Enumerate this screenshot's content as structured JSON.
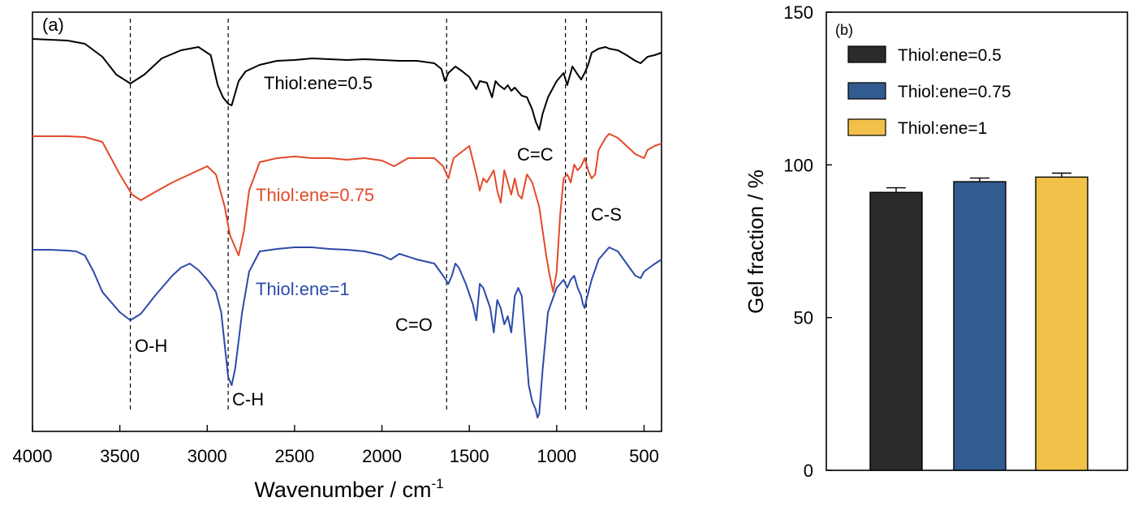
{
  "chart_data": [
    {
      "type": "line",
      "panel_label": "(a)",
      "xlabel": "Wavenumber / cm",
      "xlabel_sup": "-1",
      "xlim": [
        4000,
        400
      ],
      "x_ticks": [
        4000,
        3500,
        3000,
        2500,
        2000,
        1500,
        1000,
        500
      ],
      "y_ticks_shown": false,
      "series": [
        {
          "name": "Thiol:ene=0.5",
          "color": "#000000",
          "x": [
            4000,
            3900,
            3800,
            3700,
            3600,
            3520,
            3440,
            3360,
            3260,
            3150,
            3050,
            2980,
            2940,
            2910,
            2880,
            2860,
            2820,
            2780,
            2700,
            2600,
            2500,
            2400,
            2300,
            2200,
            2100,
            2000,
            1900,
            1800,
            1700,
            1660,
            1640,
            1620,
            1580,
            1540,
            1500,
            1460,
            1440,
            1400,
            1370,
            1350,
            1330,
            1300,
            1280,
            1260,
            1240,
            1200,
            1170,
            1140,
            1120,
            1100,
            1080,
            1050,
            1020,
            1000,
            980,
            960,
            940,
            910,
            880,
            860,
            840,
            820,
            800,
            760,
            720,
            700,
            650,
            600,
            550,
            520,
            480,
            440,
            400
          ],
          "y": [
            8,
            9,
            10,
            14,
            30,
            52,
            63,
            52,
            32,
            22,
            18,
            28,
            65,
            80,
            88,
            90,
            60,
            48,
            40,
            35,
            34,
            32,
            33,
            34,
            33,
            34,
            35,
            35,
            38,
            45,
            60,
            50,
            42,
            48,
            55,
            70,
            60,
            62,
            80,
            60,
            65,
            70,
            65,
            72,
            68,
            78,
            80,
            95,
            110,
            120,
            100,
            80,
            68,
            60,
            55,
            50,
            65,
            42,
            52,
            58,
            50,
            40,
            25,
            20,
            18,
            20,
            22,
            28,
            35,
            38,
            30,
            28,
            25
          ]
        },
        {
          "name": "Thiol:ene=0.75",
          "color": "#e34a2a",
          "x": [
            4000,
            3900,
            3800,
            3700,
            3600,
            3500,
            3430,
            3380,
            3300,
            3200,
            3100,
            3000,
            2950,
            2900,
            2870,
            2840,
            2820,
            2790,
            2760,
            2700,
            2600,
            2500,
            2400,
            2300,
            2200,
            2100,
            2000,
            1930,
            1850,
            1700,
            1650,
            1620,
            1590,
            1560,
            1500,
            1460,
            1440,
            1420,
            1400,
            1360,
            1340,
            1320,
            1300,
            1280,
            1260,
            1240,
            1220,
            1200,
            1170,
            1140,
            1120,
            1100,
            1080,
            1060,
            1040,
            1020,
            1000,
            980,
            960,
            940,
            920,
            900,
            880,
            860,
            840,
            820,
            800,
            780,
            760,
            720,
            700,
            650,
            600,
            550,
            500,
            480,
            440,
            400
          ],
          "y": [
            3,
            3,
            3,
            4,
            10,
            50,
            75,
            82,
            72,
            60,
            50,
            40,
            50,
            90,
            125,
            140,
            150,
            120,
            70,
            35,
            30,
            28,
            30,
            30,
            32,
            30,
            33,
            40,
            30,
            30,
            40,
            55,
            30,
            25,
            15,
            50,
            70,
            55,
            60,
            45,
            70,
            85,
            45,
            60,
            75,
            55,
            75,
            80,
            50,
            60,
            75,
            90,
            120,
            150,
            175,
            195,
            170,
            100,
            55,
            50,
            60,
            38,
            45,
            40,
            30,
            45,
            55,
            50,
            20,
            5,
            0,
            5,
            15,
            25,
            30,
            20,
            15,
            12
          ]
        },
        {
          "name": "Thiol:ene=1",
          "color": "#2b4ba8",
          "x": [
            4000,
            3900,
            3800,
            3750,
            3700,
            3650,
            3600,
            3500,
            3440,
            3380,
            3300,
            3200,
            3150,
            3100,
            3050,
            3000,
            2950,
            2920,
            2900,
            2880,
            2860,
            2840,
            2800,
            2760,
            2700,
            2600,
            2500,
            2400,
            2300,
            2200,
            2100,
            2000,
            1950,
            1900,
            1800,
            1700,
            1650,
            1620,
            1600,
            1580,
            1560,
            1520,
            1480,
            1460,
            1440,
            1420,
            1380,
            1360,
            1340,
            1320,
            1300,
            1280,
            1260,
            1240,
            1220,
            1200,
            1180,
            1160,
            1140,
            1120,
            1110,
            1100,
            1080,
            1050,
            1000,
            960,
            940,
            920,
            900,
            880,
            860,
            850,
            840,
            830,
            800,
            760,
            720,
            700,
            650,
            600,
            550,
            520,
            500,
            450,
            400
          ],
          "y": [
            3,
            3,
            4,
            5,
            10,
            30,
            55,
            80,
            90,
            82,
            60,
            35,
            25,
            20,
            28,
            40,
            55,
            80,
            120,
            160,
            170,
            150,
            80,
            30,
            5,
            2,
            0,
            0,
            2,
            3,
            5,
            10,
            15,
            8,
            15,
            20,
            35,
            45,
            35,
            20,
            25,
            45,
            70,
            90,
            45,
            50,
            75,
            105,
            65,
            75,
            95,
            85,
            105,
            60,
            50,
            60,
            115,
            170,
            190,
            200,
            210,
            205,
            150,
            80,
            50,
            40,
            50,
            40,
            35,
            50,
            60,
            70,
            75,
            65,
            40,
            15,
            5,
            0,
            5,
            20,
            35,
            38,
            30,
            22,
            15
          ]
        }
      ],
      "annotations": [
        {
          "text": "Thiol:ene=0.5",
          "color": "#000000"
        },
        {
          "text": "Thiol:ene=0.75",
          "color": "#e34a2a"
        },
        {
          "text": "Thiol:ene=1",
          "color": "#2b4ba8"
        },
        {
          "text": "O-H",
          "color": "#000000"
        },
        {
          "text": "C-H",
          "color": "#000000"
        },
        {
          "text": "C=O",
          "color": "#000000"
        },
        {
          "text": "C=C",
          "color": "#000000"
        },
        {
          "text": "C-S",
          "color": "#000000"
        }
      ],
      "reference_lines": [
        3440,
        2880,
        1630,
        950,
        830
      ]
    },
    {
      "type": "bar",
      "panel_label": "(b)",
      "ylabel": "Gel fraction / %",
      "xlabel": "",
      "ylim": [
        0,
        150
      ],
      "y_ticks": [
        0,
        50,
        100,
        150
      ],
      "categories": [
        "Thiol:ene=0.5",
        "Thiol:ene=0.75",
        "Thiol:ene=1"
      ],
      "values": [
        91,
        94.5,
        96
      ],
      "errors": [
        1.5,
        1.2,
        1.3
      ],
      "colors": [
        "#2b2b2b",
        "#325b8f",
        "#f2c14a"
      ],
      "legend_position": "top-left"
    }
  ]
}
